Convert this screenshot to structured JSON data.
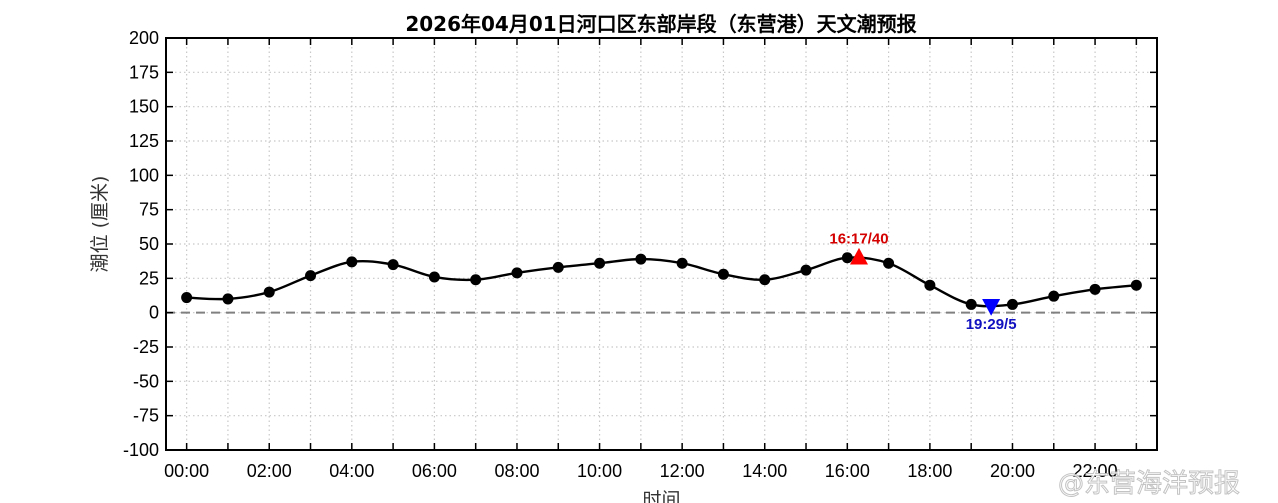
{
  "chart_data": {
    "type": "line",
    "title": "2026年04月01日河口区东部岸段（东营港）天文潮预报",
    "xlabel": "时间",
    "ylabel": "潮位 (厘米)",
    "x": [
      "00:00",
      "01:00",
      "02:00",
      "03:00",
      "04:00",
      "05:00",
      "06:00",
      "07:00",
      "08:00",
      "09:00",
      "10:00",
      "11:00",
      "12:00",
      "13:00",
      "14:00",
      "15:00",
      "16:00",
      "17:00",
      "18:00",
      "19:00",
      "20:00",
      "21:00",
      "22:00",
      "23:00"
    ],
    "x_tick_labels": [
      "00:00",
      "02:00",
      "04:00",
      "06:00",
      "08:00",
      "10:00",
      "12:00",
      "14:00",
      "16:00",
      "18:00",
      "20:00",
      "22:00"
    ],
    "series": [
      {
        "values": [
          11,
          10,
          15,
          27,
          37,
          35,
          26,
          24,
          29,
          33,
          36,
          39,
          36,
          28,
          24,
          31,
          40,
          36,
          20,
          6,
          6,
          12,
          17,
          20
        ]
      }
    ],
    "ylim": [
      -100,
      200
    ],
    "y_ticks": [
      -100,
      -75,
      -50,
      -25,
      0,
      25,
      50,
      75,
      100,
      125,
      150,
      175,
      200
    ],
    "grid": true,
    "legend": "none",
    "reference_line": {
      "y": 0,
      "style": "dashed"
    },
    "annotations": [
      {
        "kind": "high",
        "time": "16:17",
        "hour": 16.283,
        "value": 40,
        "label": "16:17/40",
        "color": "#ff0000",
        "marker": "up-triangle"
      },
      {
        "kind": "low",
        "time": "19:29",
        "hour": 19.483,
        "value": 5,
        "label": "19:29/5",
        "color": "#0000ff",
        "marker": "down-triangle"
      }
    ],
    "colors": {
      "line": "#000000",
      "points": "#000000",
      "grid": "#c8c8c8",
      "zero_line": "#808080"
    }
  },
  "watermark": "@东营海洋预报"
}
